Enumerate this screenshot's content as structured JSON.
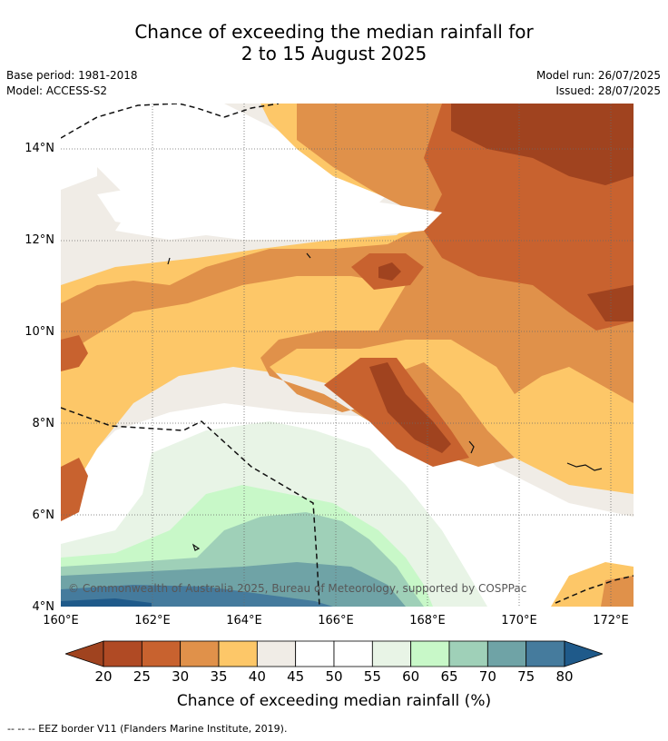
{
  "title_line1": "Chance of exceeding the median rainfall for",
  "title_line2": "2 to 15 August 2025",
  "base_period": "Base period: 1981-2018",
  "model": "Model: ACCESS-S2",
  "model_run": "Model run: 26/07/2025",
  "issued": "Issued: 28/07/2025",
  "copyright": "© Commonwealth of Australia 2025, Bureau of Meteorology, supported by COSPPac",
  "y_ticks": [
    "14°N",
    "12°N",
    "10°N",
    "8°N",
    "6°N",
    "4°N"
  ],
  "x_ticks": [
    "160°E",
    "162°E",
    "164°E",
    "166°E",
    "168°E",
    "170°E",
    "172°E"
  ],
  "colorbar": {
    "labels": [
      "20",
      "25",
      "30",
      "35",
      "40",
      "45",
      "50",
      "55",
      "60",
      "65",
      "70",
      "75",
      "80"
    ],
    "colors": [
      "#a0431f",
      "#b04a24",
      "#c8622f",
      "#e0914a",
      "#fdc768",
      "#f0ece6",
      "#ffffff",
      "#ffffff",
      "#e8f4e6",
      "#c8f8c8",
      "#9fd0b8",
      "#6fa3a6",
      "#457b9d",
      "#1f5a8a"
    ],
    "title": "Chance of exceeding median rainfall (%)"
  },
  "footnote": "--  --  -- EEZ border V11 (Flanders Marine Institute, 2019).",
  "map_data": {
    "lon_range": [
      160,
      172.5
    ],
    "lat_range": [
      4,
      15
    ],
    "projection": "plate carree",
    "grid": true
  }
}
